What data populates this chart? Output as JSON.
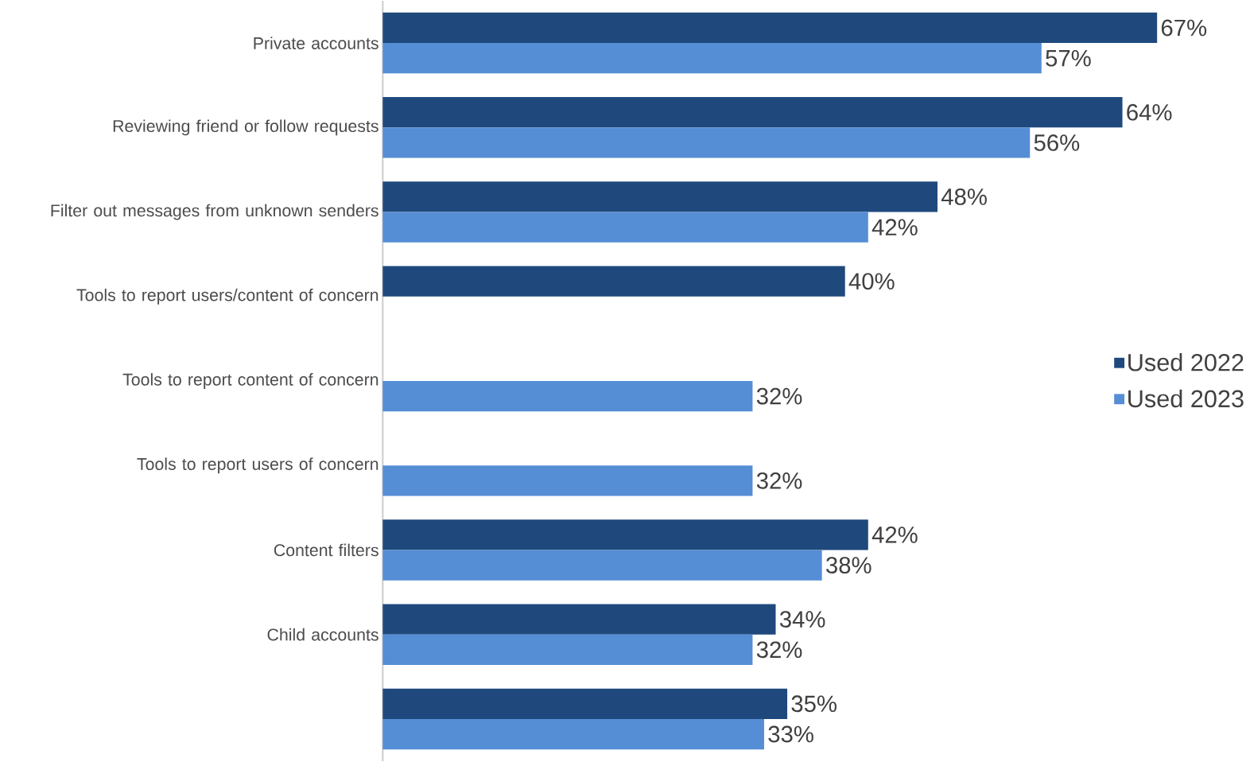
{
  "chart_data": {
    "type": "bar",
    "orientation": "horizontal",
    "categories": [
      "Private accounts",
      "Reviewing friend or follow requests",
      "Filter out messages from unknown senders",
      "Tools to report users/content of concern",
      "Tools to report content of concern",
      "Tools to report users of concern",
      "Content filters",
      "Child accounts",
      null
    ],
    "series": [
      {
        "name": "Used 2022",
        "color": "#1f497d",
        "values": [
          67,
          64,
          48,
          40,
          null,
          null,
          42,
          34,
          35
        ],
        "value_labels": [
          "67%",
          "64%",
          "48%",
          "40%",
          null,
          null,
          "42%",
          "34%",
          "35%"
        ]
      },
      {
        "name": "Used 2023",
        "color": "#558ed5",
        "values": [
          57,
          56,
          42,
          null,
          32,
          32,
          38,
          32,
          33
        ],
        "value_labels": [
          "57%",
          "56%",
          "42%",
          null,
          "32%",
          "32%",
          "38%",
          "32%",
          "33%"
        ]
      }
    ],
    "legend": "right"
  }
}
